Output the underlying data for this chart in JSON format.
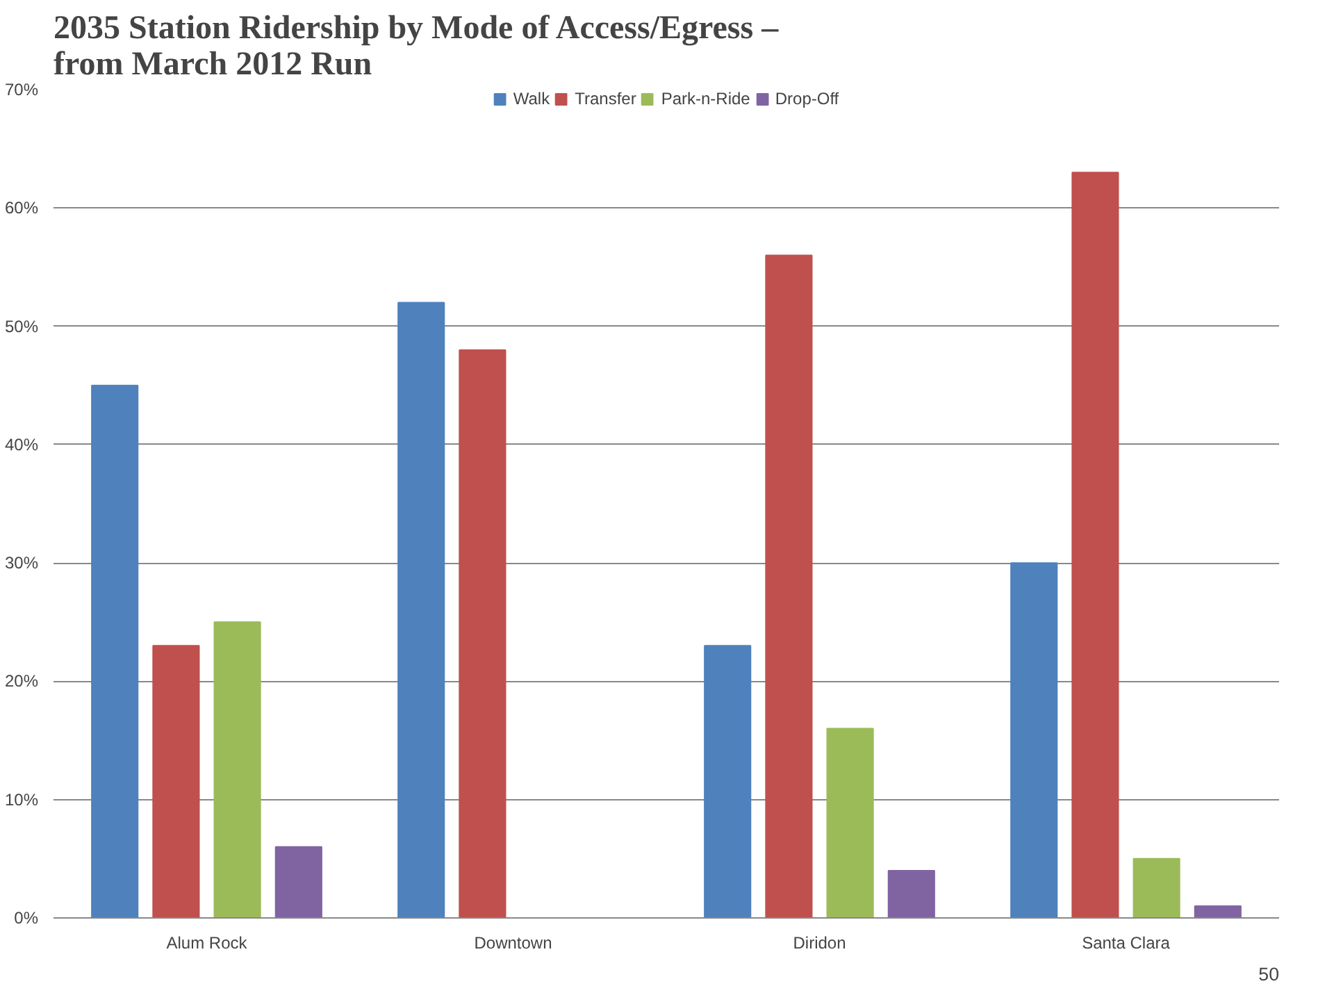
{
  "chart_data": {
    "type": "bar",
    "title": "2035 Station Ridership by Mode of Access/Egress –\nfrom March 2012 Run",
    "categories": [
      "Alum Rock",
      "Downtown",
      "Diridon",
      "Santa Clara"
    ],
    "series": [
      {
        "name": "Walk",
        "color": "#4f81bd",
        "values": [
          45,
          52,
          23,
          30
        ]
      },
      {
        "name": "Transfer",
        "color": "#c0504d",
        "values": [
          23,
          48,
          56,
          63
        ]
      },
      {
        "name": "Park-n-Ride",
        "color": "#9bbb59",
        "values": [
          25,
          null,
          16,
          5
        ]
      },
      {
        "name": "Drop-Off",
        "color": "#8064a2",
        "values": [
          6,
          null,
          4,
          1
        ]
      }
    ],
    "ylim": [
      0,
      70
    ],
    "yticks": [
      {
        "value": 0,
        "label": "0%"
      },
      {
        "value": 10,
        "label": "10%"
      },
      {
        "value": 20,
        "label": "20%"
      },
      {
        "value": 30,
        "label": "30%"
      },
      {
        "value": 40,
        "label": "40%"
      },
      {
        "value": 50,
        "label": "50%"
      },
      {
        "value": 60,
        "label": "60%"
      },
      {
        "value": 70,
        "label": "70%"
      }
    ],
    "grid": "y",
    "legend": "top",
    "annotations": [
      "50"
    ]
  }
}
